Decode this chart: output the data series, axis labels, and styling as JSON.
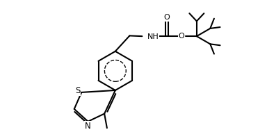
{
  "background_color": "#ffffff",
  "line_color": "#000000",
  "line_width": 1.5,
  "fig_width": 3.84,
  "fig_height": 2.0,
  "dpi": 100,
  "xlim": [
    0,
    10
  ],
  "ylim": [
    0,
    5.2
  ]
}
